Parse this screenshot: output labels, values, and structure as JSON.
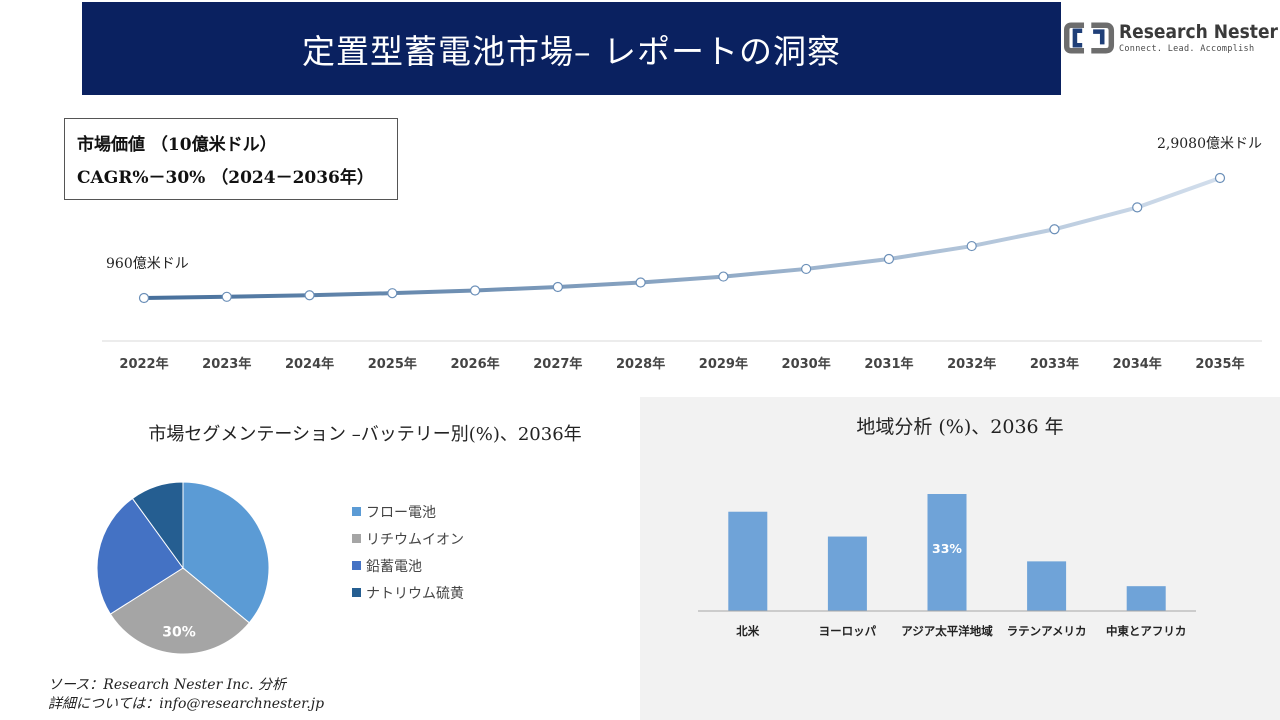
{
  "header": {
    "title": "定置型蓄電池市場– レポートの洞察"
  },
  "logo": {
    "name": "Research Nester",
    "tagline": "Connect. Lead. Accomplish"
  },
  "info_box": {
    "line1": "市場価値 （10億米ドル）",
    "line2": "CAGR%－30% （2024－2036年）"
  },
  "colors": {
    "header_bg": "#0a2160",
    "line_start": "#466f9b",
    "line_end": "#d2deec",
    "pie": [
      "#5b9bd5",
      "#a5a5a5",
      "#4472c4",
      "#255e91"
    ],
    "bar": "#6fa3d8"
  },
  "chart_data": [
    {
      "type": "line",
      "title": "",
      "x": [
        "2022年",
        "2023年",
        "2024年",
        "2025年",
        "2026年",
        "2027年",
        "2028年",
        "2029年",
        "2030年",
        "2031年",
        "2032年",
        "2033年",
        "2034年",
        "2035年"
      ],
      "values": [
        96,
        124,
        161,
        209,
        272,
        354,
        460,
        598,
        777,
        1010,
        1313,
        1707,
        2219,
        2908
      ],
      "annotations": [
        {
          "x": "2022年",
          "text": "960億米ドル"
        },
        {
          "x": "2035年",
          "text": "2,9080億米ドル"
        }
      ],
      "grid": false,
      "legend": "none"
    },
    {
      "type": "pie",
      "title": "市場セグメンテーション –バッテリー別(%)、2036年",
      "labels": [
        "フロー電池",
        "リチウムイオン",
        "鉛蓄電池",
        "ナトリウム硫黄"
      ],
      "values": [
        36,
        30,
        24,
        10
      ],
      "data_labels": [
        "",
        "30%",
        "",
        ""
      ],
      "legend": "right"
    },
    {
      "type": "bar",
      "title": "地域分析 (%)、2036 年",
      "categories": [
        "北米",
        "ヨーロッパ",
        "アジア太平洋地域",
        "ラテンアメリカ",
        "中東とアフリカ"
      ],
      "values": [
        28,
        21,
        33,
        14,
        7
      ],
      "data_labels": [
        "",
        "",
        "33%",
        "",
        ""
      ],
      "grid": false,
      "legend": "none"
    }
  ],
  "source": {
    "line1": "ソース：Research Nester Inc. 分析",
    "line2": "詳細については：info@researchnester.jp"
  }
}
